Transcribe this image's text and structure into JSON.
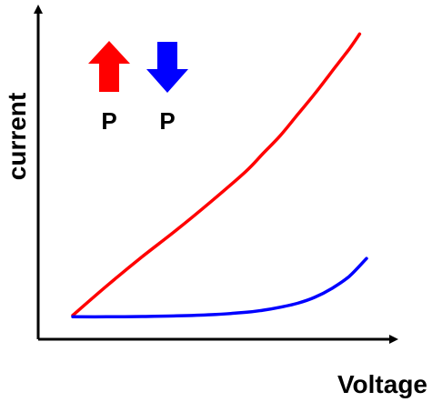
{
  "chart_data": {
    "type": "line",
    "title": "",
    "xlabel": "Voltage",
    "ylabel": "current",
    "xlim": [
      0,
      10
    ],
    "ylim": [
      0,
      10
    ],
    "grid": false,
    "legend_position": "top-left",
    "series": [
      {
        "name": "P",
        "color": "#ff0000",
        "arrow": "up",
        "x": [
          1,
          2,
          3,
          4,
          5,
          6,
          6.5,
          7,
          7.5,
          8,
          8.5,
          9,
          9.3
        ],
        "y": [
          0.8,
          1.8,
          2.75,
          3.65,
          4.6,
          5.6,
          6.2,
          6.8,
          7.5,
          8.2,
          8.95,
          9.7,
          10.2
        ]
      },
      {
        "name": "P",
        "color": "#0000ff",
        "arrow": "down",
        "x": [
          1,
          2,
          3,
          4,
          5,
          6,
          6.5,
          7,
          7.5,
          8,
          8.5,
          9,
          9.5
        ],
        "y": [
          0.75,
          0.75,
          0.76,
          0.78,
          0.82,
          0.9,
          0.97,
          1.07,
          1.2,
          1.4,
          1.7,
          2.1,
          2.7
        ]
      }
    ]
  }
}
